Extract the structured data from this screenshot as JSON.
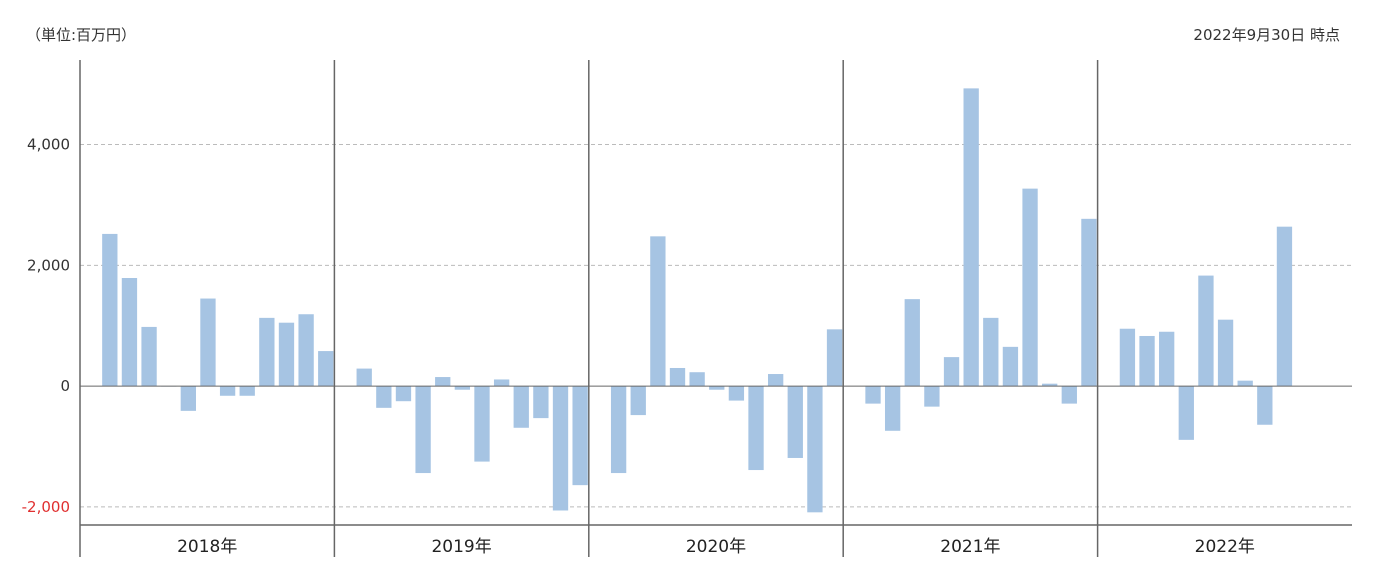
{
  "unit_label": "（単位:百万円）",
  "as_of": "2022年9月30日 時点",
  "chart_data": {
    "type": "bar",
    "ylim": [
      -2300,
      5400
    ],
    "yticks": [
      -2000,
      0,
      2000,
      4000
    ],
    "ytick_labels": [
      "-2,000",
      "0",
      "2,000",
      "4,000"
    ],
    "grid": true,
    "groups": [
      {
        "label": "2018年",
        "values": [
          2520,
          1790,
          980,
          0,
          -410,
          1450,
          -160,
          -160,
          1130,
          1050,
          1190,
          580
        ]
      },
      {
        "label": "2019年",
        "values": [
          290,
          -360,
          -250,
          -1440,
          150,
          -60,
          -1250,
          110,
          -690,
          -530,
          -2060,
          -1640
        ]
      },
      {
        "label": "2020年",
        "values": [
          -1440,
          -480,
          2480,
          300,
          230,
          -60,
          -240,
          -1390,
          200,
          -1190,
          -2090,
          940
        ]
      },
      {
        "label": "2021年",
        "values": [
          -290,
          -740,
          1440,
          -340,
          480,
          4930,
          1130,
          650,
          3270,
          40,
          -290,
          2770
        ]
      },
      {
        "label": "2022年",
        "values": [
          950,
          830,
          900,
          -890,
          1830,
          1100,
          90,
          -640,
          2640
        ]
      }
    ],
    "colors": {
      "bar": "#a6c4e3",
      "negative_tick": "#e03030",
      "grid": "#bbbbbb",
      "axis": "#666666"
    }
  }
}
